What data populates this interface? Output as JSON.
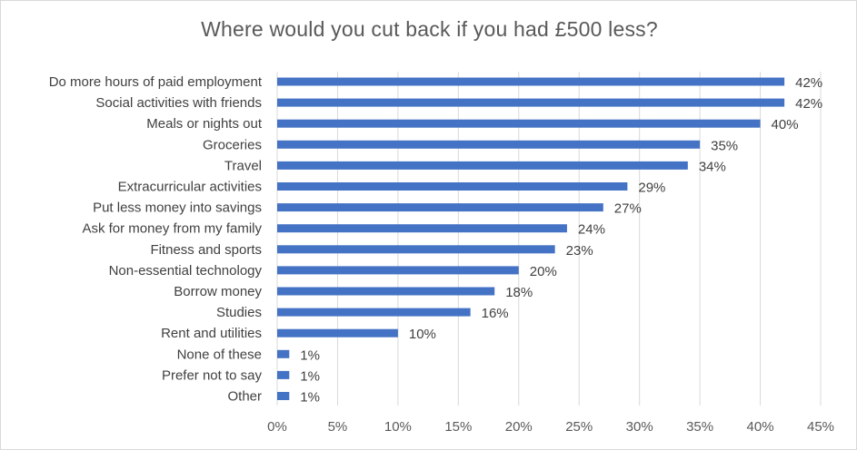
{
  "chart_data": {
    "type": "bar",
    "orientation": "horizontal",
    "title": "Where would you cut back if you had £500 less?",
    "xlabel": "",
    "ylabel": "",
    "categories": [
      "Do more hours of paid employment",
      "Social activities with friends",
      "Meals or nights out",
      "Groceries",
      "Travel",
      "Extracurricular activities",
      "Put less money into savings",
      "Ask for money from my family",
      "Fitness and sports",
      "Non-essential technology",
      "Borrow money",
      "Studies",
      "Rent and utilities",
      "None of these",
      "Prefer not to say",
      "Other"
    ],
    "values": [
      42,
      42,
      40,
      35,
      34,
      29,
      27,
      24,
      23,
      20,
      18,
      16,
      10,
      1,
      1,
      1
    ],
    "data_labels": [
      "42%",
      "42%",
      "40%",
      "35%",
      "34%",
      "29%",
      "27%",
      "24%",
      "23%",
      "20%",
      "18%",
      "16%",
      "10%",
      "1%",
      "1%",
      "1%"
    ],
    "xlim": [
      0,
      45
    ],
    "x_ticks": [
      0,
      5,
      10,
      15,
      20,
      25,
      30,
      35,
      40,
      45
    ],
    "x_tick_labels": [
      "0%",
      "5%",
      "10%",
      "15%",
      "20%",
      "25%",
      "30%",
      "35%",
      "40%",
      "45%"
    ],
    "grid": "vertical",
    "legend": "none",
    "bar_color": "#4472c4",
    "grid_color": "#d9d9d9"
  }
}
